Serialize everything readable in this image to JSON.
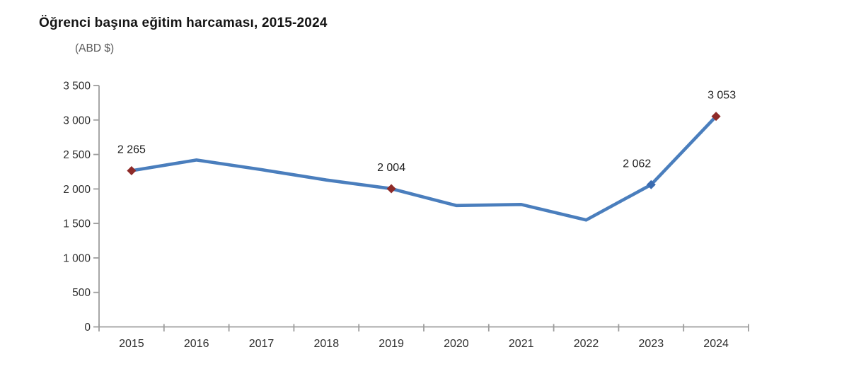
{
  "chart_data": {
    "type": "line",
    "title": "Öğrenci başına eğitim harcaması, 2015-2024",
    "unit_label": "(ABD $)",
    "categories": [
      "2015",
      "2016",
      "2017",
      "2018",
      "2019",
      "2020",
      "2021",
      "2022",
      "2023",
      "2024"
    ],
    "series": [
      {
        "name": "Öğrenci başına eğitim harcaması (ABD $)",
        "values": [
          2265,
          2420,
          2280,
          2130,
          2004,
          1760,
          1775,
          1550,
          2062,
          3053
        ]
      }
    ],
    "point_labels": [
      "2 265",
      null,
      null,
      null,
      "2 004",
      null,
      null,
      null,
      "2 062",
      "3 053"
    ],
    "markers": [
      "darkred",
      null,
      null,
      null,
      "darkred",
      null,
      null,
      null,
      "blue",
      "darkred"
    ],
    "ylim": [
      0,
      3500
    ],
    "ytick_values": [
      0,
      500,
      1000,
      1500,
      2000,
      2500,
      3000,
      3500
    ],
    "ytick_labels": [
      "0",
      "500",
      "1 000",
      "1 500",
      "2 000",
      "2 500",
      "3 000",
      "3 500"
    ],
    "grid": false,
    "legend": "none",
    "colors": {
      "line": "#4a7ebd",
      "marker_darkred": "#8e2a28",
      "marker_blue": "#3a6bb0",
      "axis": "#9d9d9d",
      "tick_text": "#2e2e2e",
      "data_label_text": "#1f1f1f",
      "title_text": "#151515",
      "subtitle_text": "#595959"
    }
  }
}
